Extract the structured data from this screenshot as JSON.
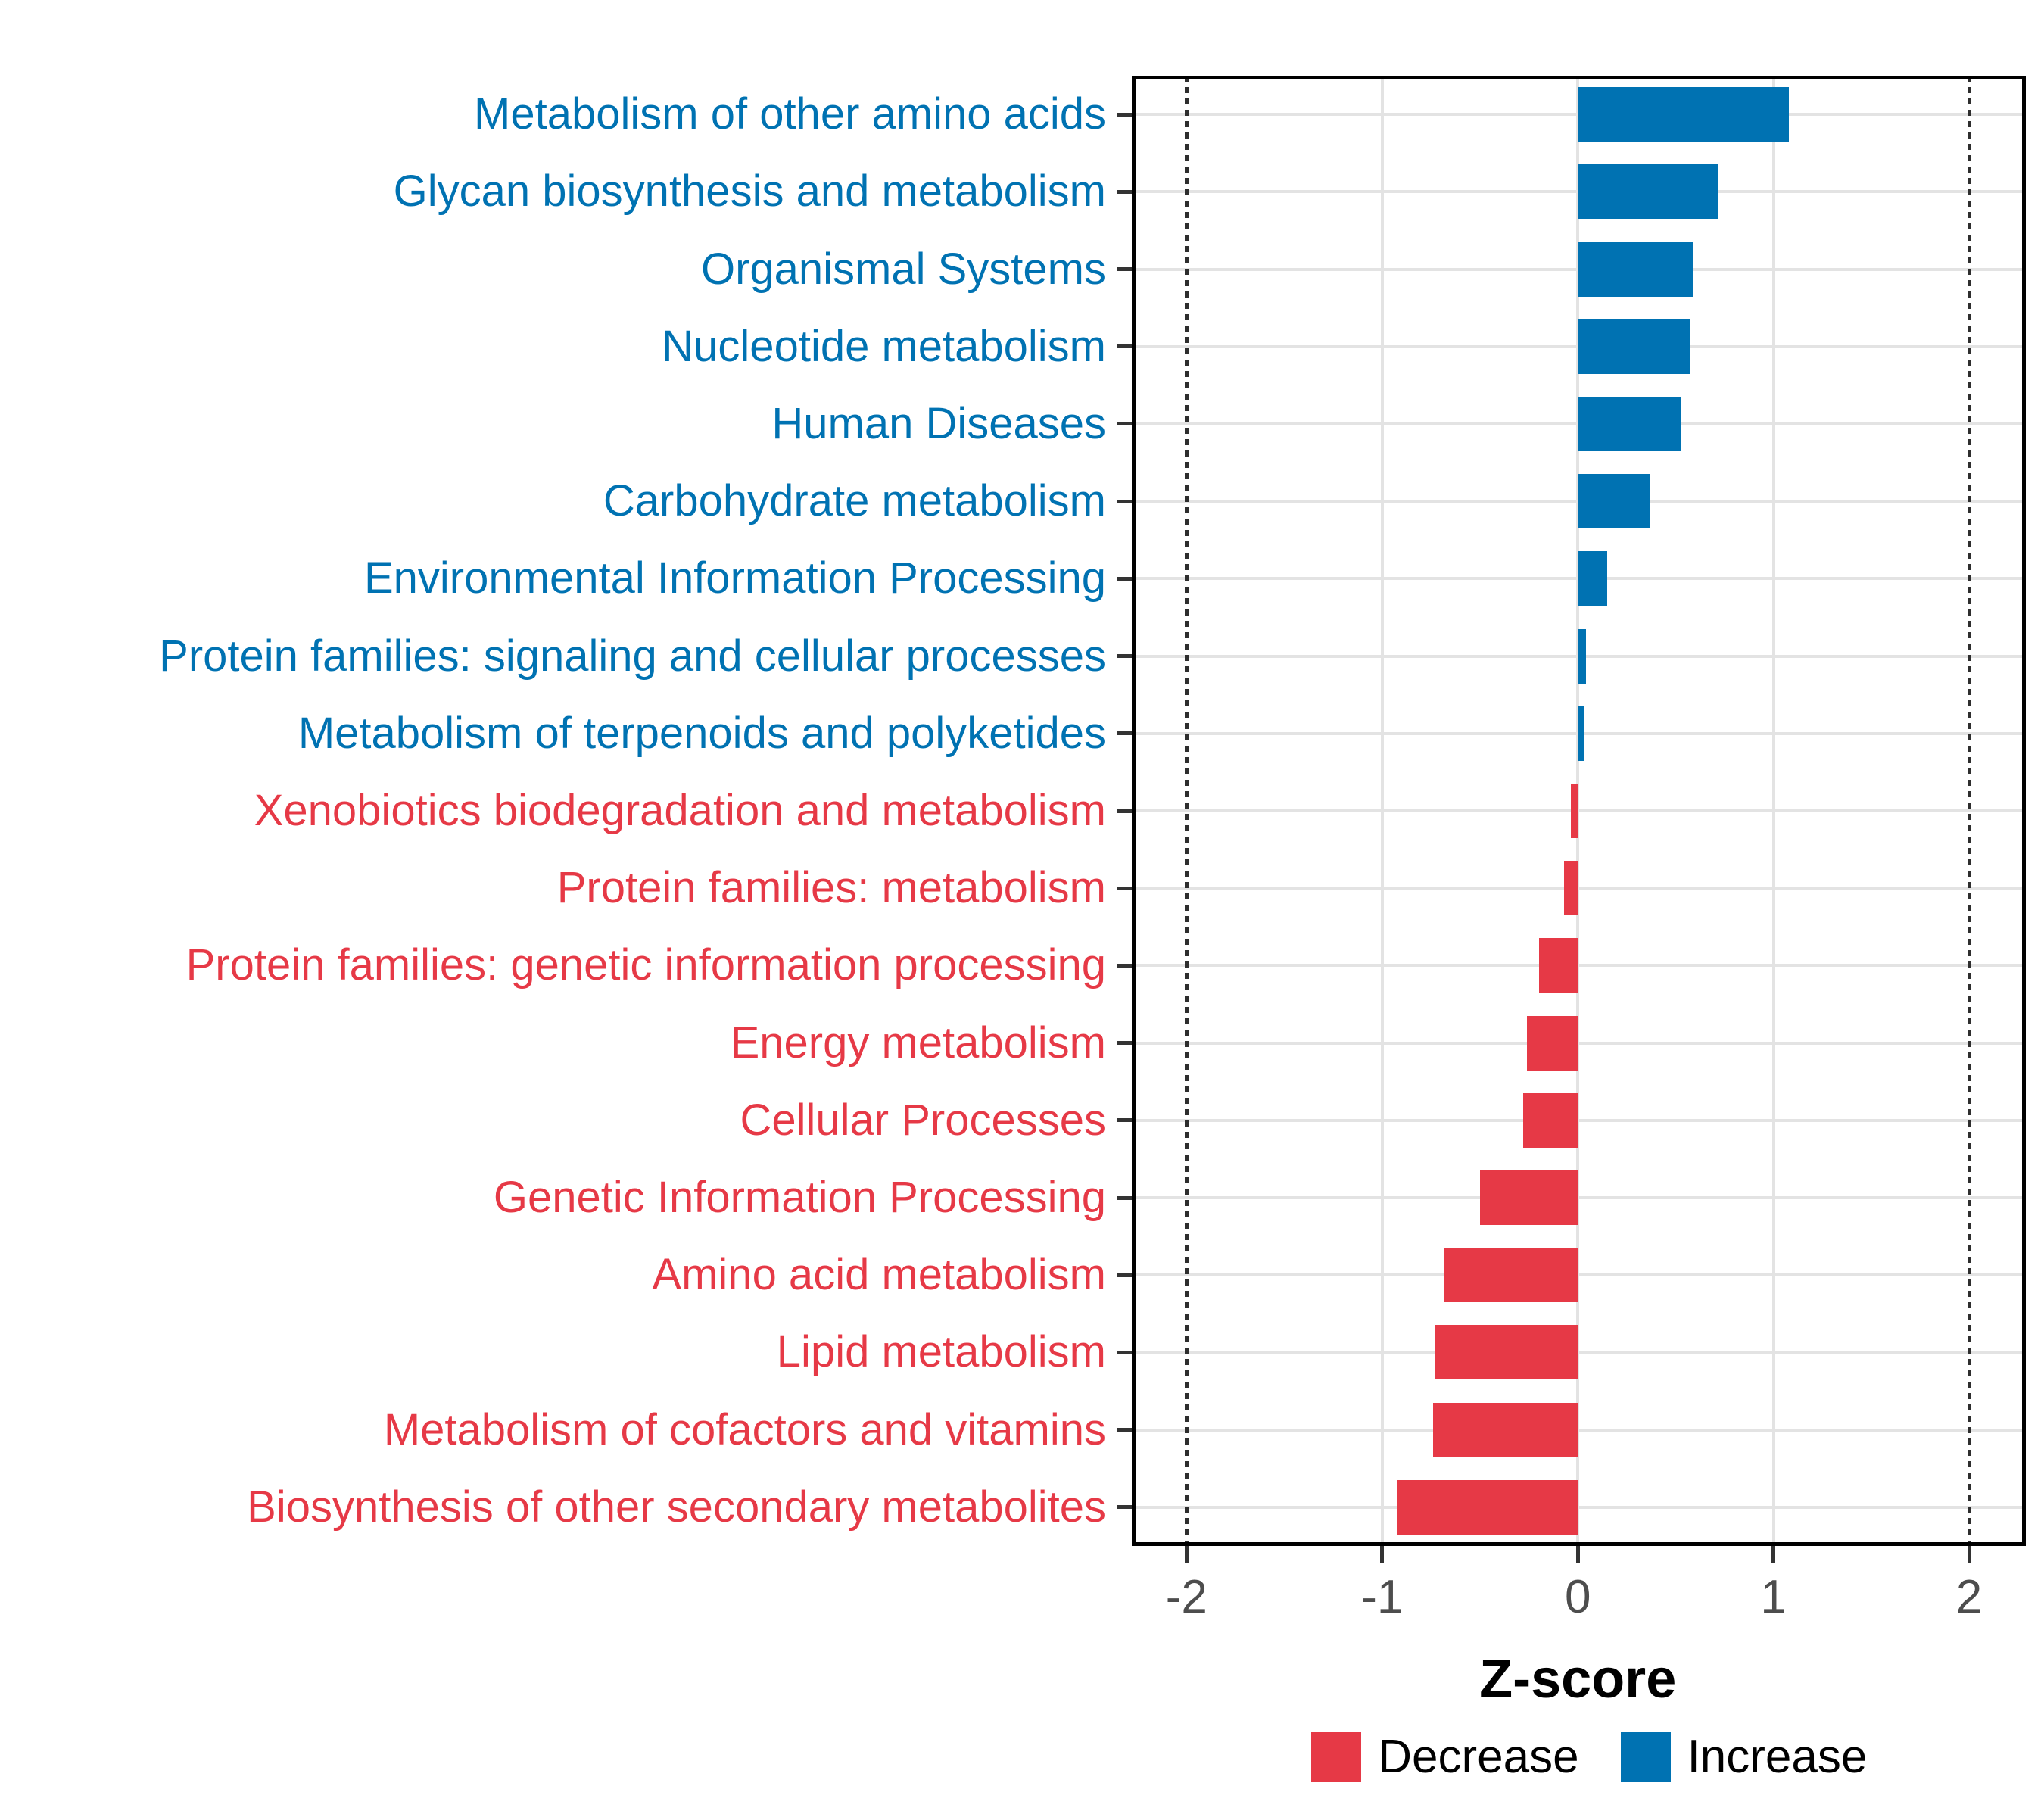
{
  "chart_data": {
    "type": "bar",
    "orientation": "horizontal",
    "title": "",
    "xlabel": "Z-score",
    "ylabel": "",
    "x_ticks": [
      -2,
      -1,
      0,
      1,
      2
    ],
    "x_tick_labels": [
      "-2",
      "-1",
      "0",
      "1",
      "2"
    ],
    "xlim": [
      -2.28,
      2.29
    ],
    "grid_x_values": [
      -1,
      0,
      1
    ],
    "reference_lines_dotted": [
      -2,
      2
    ],
    "categories": [
      "Metabolism of other amino acids",
      "Glycan biosynthesis and metabolism",
      "Organismal Systems",
      "Nucleotide metabolism",
      "Human Diseases",
      "Carbohydrate metabolism",
      "Environmental Information Processing",
      "Protein families: signaling and cellular processes",
      "Metabolism of terpenoids and polyketides",
      "Xenobiotics biodegradation and metabolism",
      "Protein families: metabolism",
      "Protein families: genetic information processing",
      "Energy metabolism",
      "Cellular Processes",
      "Genetic Information Processing",
      "Amino acid metabolism",
      "Lipid metabolism",
      "Metabolism of cofactors and vitamins",
      "Biosynthesis of other secondary metabolites"
    ],
    "values": [
      1.08,
      0.72,
      0.59,
      0.57,
      0.53,
      0.37,
      0.15,
      0.04,
      0.035,
      -0.035,
      -0.07,
      -0.2,
      -0.26,
      -0.28,
      -0.5,
      -0.68,
      -0.73,
      -0.74,
      -0.92
    ],
    "directions": [
      "Increase",
      "Increase",
      "Increase",
      "Increase",
      "Increase",
      "Increase",
      "Increase",
      "Increase",
      "Increase",
      "Decrease",
      "Decrease",
      "Decrease",
      "Decrease",
      "Decrease",
      "Decrease",
      "Decrease",
      "Decrease",
      "Decrease",
      "Decrease"
    ],
    "colors": {
      "increase": "#0072B2",
      "decrease": "#E63946",
      "gridline": "#e3e3e3",
      "reference_line": "#2e2e2e",
      "tick_label": "#4d4d4d",
      "panel_border": "#000000",
      "background": "#ffffff"
    },
    "legend_position": "bottom",
    "legend": [
      {
        "label": "Decrease",
        "color": "#E63946"
      },
      {
        "label": "Increase",
        "color": "#0072B2"
      }
    ]
  }
}
